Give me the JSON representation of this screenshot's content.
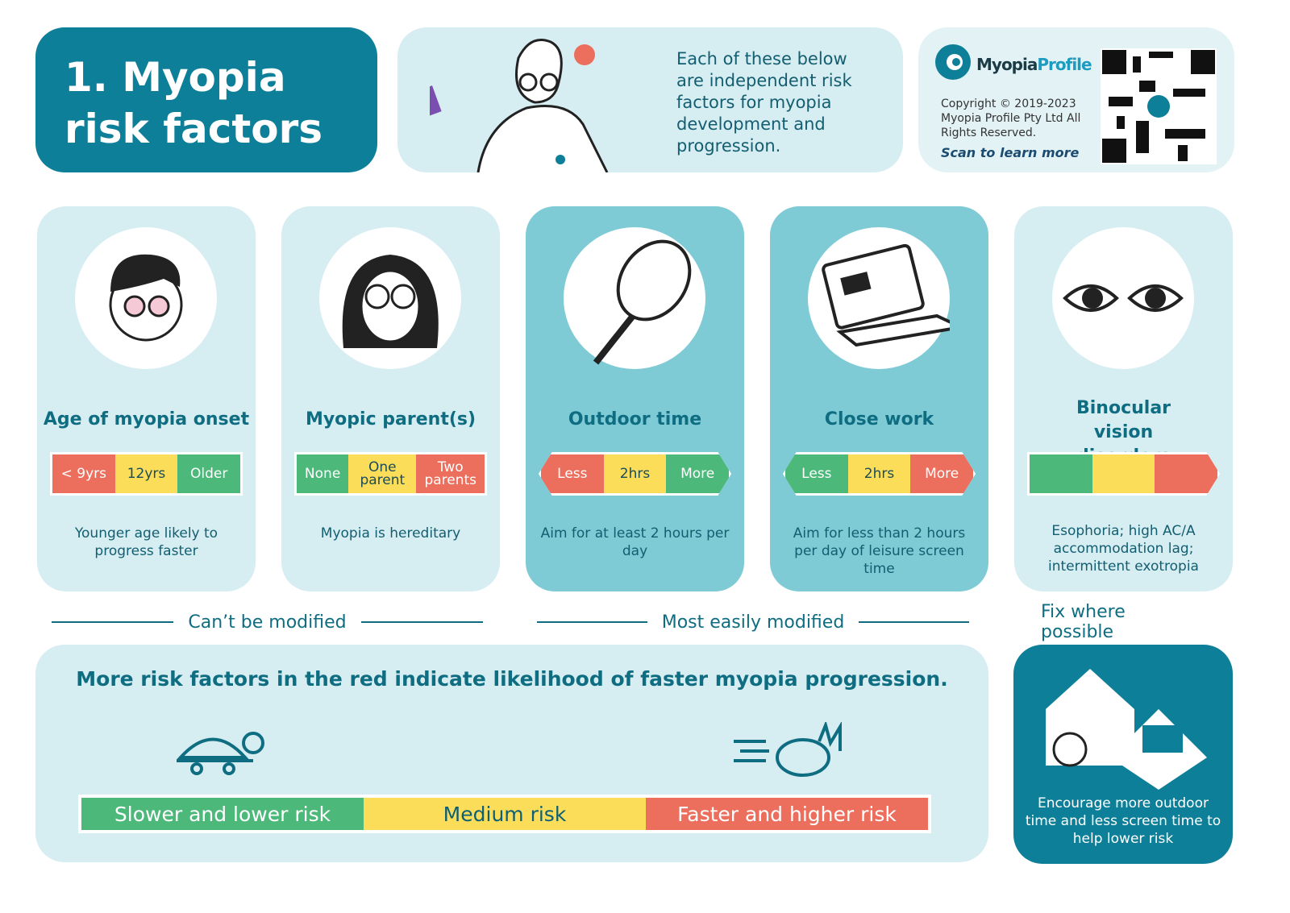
{
  "header": {
    "title": "1. Myopia risk factors",
    "intro": "Each of these below are independent risk factors for myopia development and progression.",
    "brand": [
      "Myopia",
      "Profile"
    ],
    "copyright": "Copyright © 2019-2023 Myopia Profile Pty Ltd All Rights Reserved.",
    "scan": "Scan to learn more"
  },
  "cards": [
    {
      "title": "Age of myopia onset",
      "scale": [
        "< 9yrs",
        "12yrs",
        "Older"
      ],
      "description": "Younger age likely to progress faster"
    },
    {
      "title": "Myopic parent(s)",
      "scale": [
        "None",
        "One parent",
        "Two parents"
      ],
      "description": "Myopia is hereditary"
    },
    {
      "title": "Outdoor time",
      "scale": [
        "Less",
        "2hrs",
        "More"
      ],
      "description": "Aim for at least 2 hours per day"
    },
    {
      "title": "Close work",
      "scale": [
        "Less",
        "2hrs",
        "More"
      ],
      "description": "Aim for less than 2 hours per day of leisure screen time"
    },
    {
      "title": "Binocular vision disorders",
      "description": "Esophoria; high AC/A accommodation lag; intermittent exotropia"
    }
  ],
  "groups": [
    "Can’t be modified",
    "Most easily modified",
    "Fix where possible"
  ],
  "footer": {
    "heading": "More risk factors in the red indicate likelihood of faster myopia progression.",
    "legend": [
      "Slower and lower risk",
      "Medium risk",
      "Faster and higher risk"
    ],
    "tip": "Encourage more outdoor time and less screen time to help lower risk"
  }
}
